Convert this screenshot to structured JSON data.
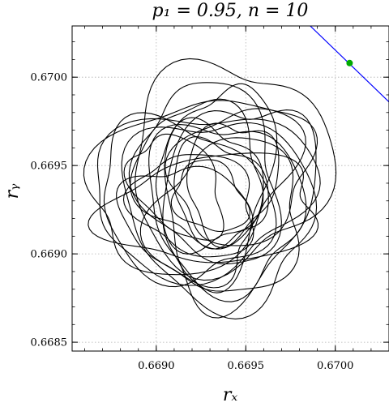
{
  "chart_data": {
    "type": "line",
    "title": "p₁ = 0.95, n = 10",
    "xlabel": "rₓ",
    "ylabel": "rᵧ",
    "xlim": [
      0.66853,
      0.6703
    ],
    "ylim": [
      0.66845,
      0.67029
    ],
    "xticks": [
      0.669,
      0.6695,
      0.67
    ],
    "xtick_labels": [
      "0.6690",
      "0.6695",
      "0.6700"
    ],
    "yticks": [
      0.6685,
      0.669,
      0.6695,
      0.67
    ],
    "ytick_labels": [
      "0.6685",
      "0.6690",
      "0.6695",
      "0.6700"
    ],
    "grid": true,
    "series": [
      {
        "color": "#000000",
        "style": "closed-loops",
        "description_center": [
          0.6693,
          0.66935
        ],
        "loops": [
          {
            "cx": 0.6694,
            "cy": 0.6695,
            "rx": 0.00055,
            "ry": 0.00058,
            "rot": -25
          },
          {
            "cx": 0.66925,
            "cy": 0.66935,
            "rx": 0.00062,
            "ry": 0.00045,
            "rot": 10
          },
          {
            "cx": 0.66935,
            "cy": 0.66925,
            "rx": 0.0005,
            "ry": 0.00055,
            "rot": 40
          },
          {
            "cx": 0.6692,
            "cy": 0.6694,
            "rx": 0.00045,
            "ry": 0.0006,
            "rot": -60
          },
          {
            "cx": 0.66945,
            "cy": 0.6693,
            "rx": 0.00058,
            "ry": 0.0004,
            "rot": 70
          },
          {
            "cx": 0.6693,
            "cy": 0.66945,
            "rx": 0.00038,
            "ry": 0.00052,
            "rot": 15
          },
          {
            "cx": 0.66915,
            "cy": 0.6693,
            "rx": 0.0005,
            "ry": 0.00042,
            "rot": -35
          },
          {
            "cx": 0.6694,
            "cy": 0.6692,
            "rx": 0.00045,
            "ry": 0.0004,
            "rot": 55
          },
          {
            "cx": 0.66928,
            "cy": 0.66938,
            "rx": 0.0003,
            "ry": 0.00035,
            "rot": 0
          },
          {
            "cx": 0.66935,
            "cy": 0.66935,
            "rx": 0.00025,
            "ry": 0.0003,
            "rot": 30
          },
          {
            "cx": 0.66922,
            "cy": 0.66928,
            "rx": 0.00035,
            "ry": 0.00028,
            "rot": -20
          },
          {
            "cx": 0.66942,
            "cy": 0.66942,
            "rx": 0.00033,
            "ry": 0.00025,
            "rot": 80
          },
          {
            "cx": 0.6693,
            "cy": 0.66932,
            "rx": 0.00018,
            "ry": 0.00022,
            "rot": 45
          },
          {
            "cx": 0.66925,
            "cy": 0.66945,
            "rx": 0.0004,
            "ry": 0.00035,
            "rot": -75
          },
          {
            "cx": 0.66938,
            "cy": 0.66928,
            "rx": 0.00042,
            "ry": 0.00048,
            "rot": 20
          },
          {
            "cx": 0.66918,
            "cy": 0.66918,
            "rx": 0.0003,
            "ry": 0.00038,
            "rot": 60
          },
          {
            "cx": 0.66948,
            "cy": 0.66945,
            "rx": 0.00035,
            "ry": 0.00042,
            "rot": -45
          },
          {
            "cx": 0.66932,
            "cy": 0.66925,
            "rx": 0.0006,
            "ry": 0.0003,
            "rot": 5
          },
          {
            "cx": 0.66935,
            "cy": 0.6694,
            "rx": 0.00028,
            "ry": 0.00058,
            "rot": -10
          },
          {
            "cx": 0.66912,
            "cy": 0.66938,
            "rx": 0.00022,
            "ry": 0.00032,
            "rot": 35
          }
        ]
      },
      {
        "color": "#0000ff",
        "style": "line",
        "x": [
          0.66986,
          0.6703
        ],
        "y": [
          0.67029,
          0.66986
        ]
      }
    ],
    "markers": [
      {
        "x": 0.67008,
        "y": 0.67008,
        "color": "#00aa00"
      }
    ]
  }
}
